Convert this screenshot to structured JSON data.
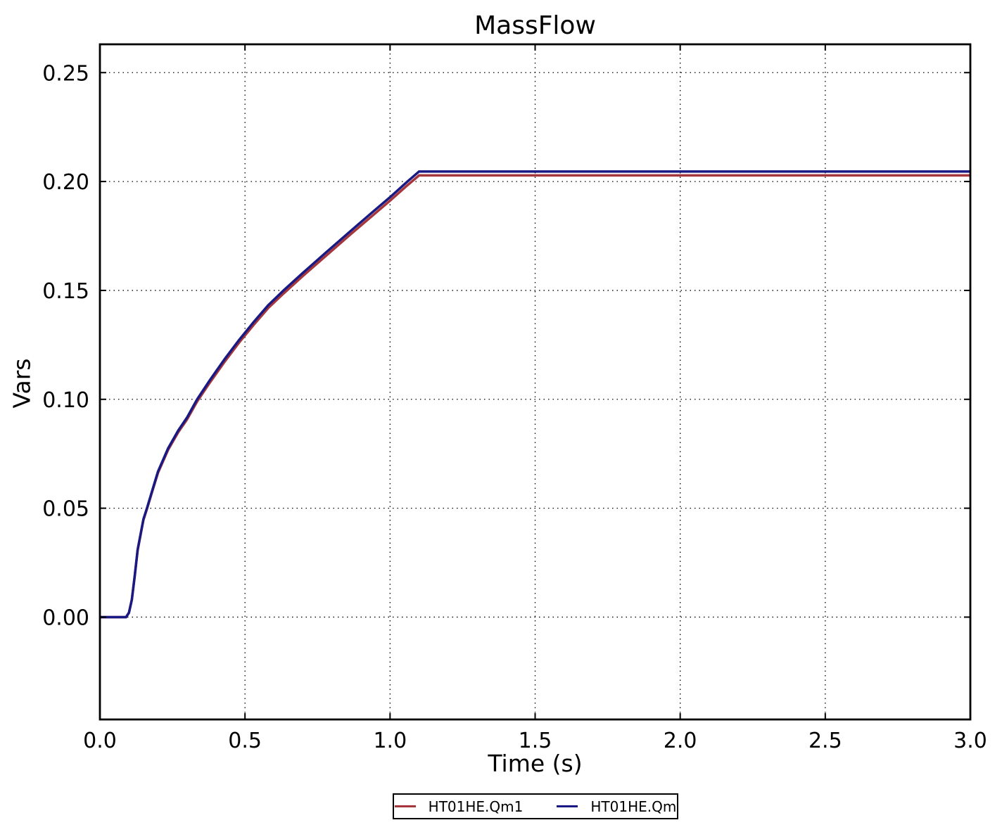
{
  "chart_data": {
    "type": "line",
    "title": "MassFlow",
    "xlabel": "Time (s)",
    "ylabel": "Vars",
    "xlim": [
      0.0,
      3.0
    ],
    "ylim": [
      -0.047,
      0.263
    ],
    "grid": true,
    "grid_style": "dotted",
    "legend_position": "below-axes-centered",
    "xticks": [
      0.0,
      0.5,
      1.0,
      1.5,
      2.0,
      2.5,
      3.0
    ],
    "xtick_labels": [
      "0.0",
      "0.5",
      "1.0",
      "1.5",
      "2.0",
      "2.5",
      "3.0"
    ],
    "yticks": [
      0.0,
      0.05,
      0.1,
      0.15,
      0.2,
      0.25
    ],
    "ytick_labels": [
      "0.00",
      "0.05",
      "0.10",
      "0.15",
      "0.20",
      "0.25"
    ],
    "x": [
      0.0,
      0.09,
      0.1,
      0.11,
      0.12,
      0.13,
      0.15,
      0.162,
      0.18,
      0.2,
      0.235,
      0.27,
      0.3,
      0.335,
      0.38,
      0.43,
      0.48,
      0.53,
      0.58,
      0.633,
      0.7,
      0.78,
      0.86,
      0.94,
      1.0,
      1.06,
      1.1,
      1.2,
      1.5,
      2.0,
      2.5,
      3.0
    ],
    "series": [
      {
        "name": "HT01HE.Qm1",
        "color": "#a5373c",
        "values": [
          0,
          0,
          0.002,
          0.008,
          0.0188,
          0.0306,
          0.0446,
          0.0496,
          0.0575,
          0.0662,
          0.0768,
          0.0849,
          0.0907,
          0.099,
          0.1079,
          0.1173,
          0.1261,
          0.1342,
          0.1419,
          0.1486,
          0.1567,
          0.166,
          0.1753,
          0.1844,
          0.1912,
          0.1983,
          0.2028,
          0.2028,
          0.2028,
          0.2028,
          0.2028,
          0.2028
        ]
      },
      {
        "name": "HT01HE.Qm",
        "color": "#191984",
        "values": [
          0,
          0,
          0.002,
          0.008,
          0.019,
          0.031,
          0.045,
          0.05,
          0.058,
          0.0668,
          0.0775,
          0.0857,
          0.0916,
          0.1,
          0.109,
          0.1185,
          0.1273,
          0.1355,
          0.1432,
          0.15,
          0.1581,
          0.1675,
          0.1768,
          0.186,
          0.1928,
          0.2,
          0.2046,
          0.2046,
          0.2046,
          0.2046,
          0.2046,
          0.2046
        ]
      }
    ]
  }
}
